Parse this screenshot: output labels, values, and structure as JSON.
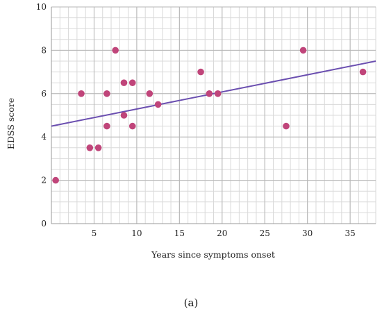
{
  "caption": "(a)",
  "chart_data": {
    "type": "scatter",
    "title": "",
    "xlabel": "Years since symptoms onset",
    "ylabel": "EDSS score",
    "xlim": [
      0,
      38
    ],
    "ylim": [
      0,
      10
    ],
    "x_ticks": [
      5,
      10,
      15,
      20,
      25,
      30,
      35
    ],
    "y_ticks": [
      0,
      2,
      4,
      6,
      8,
      10
    ],
    "grid": true,
    "legend": "none",
    "point_color": "#c0457a",
    "line_color": "#6b4fb0",
    "points": [
      {
        "x": 0.5,
        "y": 2
      },
      {
        "x": 3.5,
        "y": 6
      },
      {
        "x": 4.5,
        "y": 3.5
      },
      {
        "x": 5.5,
        "y": 3.5
      },
      {
        "x": 6.5,
        "y": 6
      },
      {
        "x": 6.5,
        "y": 4.5
      },
      {
        "x": 7.5,
        "y": 8
      },
      {
        "x": 8.5,
        "y": 6.5
      },
      {
        "x": 8.5,
        "y": 5
      },
      {
        "x": 9.5,
        "y": 6.5
      },
      {
        "x": 9.5,
        "y": 4.5
      },
      {
        "x": 11.5,
        "y": 6
      },
      {
        "x": 12.5,
        "y": 5.5
      },
      {
        "x": 17.5,
        "y": 7
      },
      {
        "x": 18.5,
        "y": 6
      },
      {
        "x": 19.5,
        "y": 6
      },
      {
        "x": 27.5,
        "y": 4.5
      },
      {
        "x": 29.5,
        "y": 8
      },
      {
        "x": 36.5,
        "y": 7
      }
    ],
    "trendline": {
      "x": [
        0,
        38
      ],
      "y": [
        4.5,
        7.5
      ]
    }
  }
}
